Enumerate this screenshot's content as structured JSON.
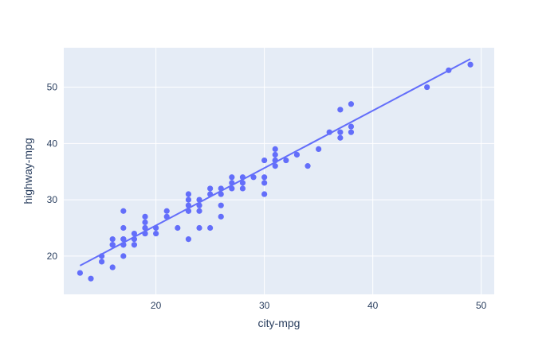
{
  "chart_data": {
    "type": "scatter",
    "title": "",
    "xlabel": "city-mpg",
    "ylabel": "highway-mpg",
    "xlim": [
      11.5,
      51.2
    ],
    "ylim": [
      13.2,
      57.0
    ],
    "xticks": [
      20,
      30,
      40,
      50
    ],
    "yticks": [
      20,
      30,
      40,
      50
    ],
    "xtick_labels": [
      "20",
      "30",
      "40",
      "50"
    ],
    "ytick_labels": [
      "20",
      "30",
      "40",
      "50"
    ],
    "grid": true,
    "legend": "none",
    "colors": {
      "plot_bg": "#e5ecf6",
      "grid": "#ffffff",
      "marker": "#636efa",
      "trendline": "#636efa",
      "text": "#2a3f5f"
    },
    "series": [
      {
        "kind": "points",
        "x": [
          13,
          14,
          15,
          15,
          16,
          16,
          16,
          16,
          17,
          17,
          17,
          17,
          17,
          17,
          17,
          18,
          18,
          18,
          19,
          19,
          19,
          19,
          19,
          19,
          20,
          20,
          21,
          21,
          22,
          23,
          23,
          23,
          23,
          23,
          23,
          24,
          24,
          24,
          24,
          25,
          25,
          25,
          26,
          26,
          26,
          26,
          27,
          27,
          27,
          28,
          28,
          28,
          29,
          30,
          30,
          30,
          30,
          31,
          31,
          31,
          31,
          31,
          32,
          33,
          34,
          35,
          36,
          37,
          37,
          37,
          38,
          38,
          38,
          45,
          47,
          49
        ],
        "y": [
          17,
          16,
          19,
          20,
          18,
          22,
          23,
          22,
          20,
          22,
          23,
          25,
          28,
          22,
          23,
          22,
          23,
          24,
          24,
          25,
          26,
          27,
          24,
          25,
          24,
          25,
          27,
          28,
          25,
          23,
          28,
          29,
          30,
          31,
          28,
          25,
          28,
          29,
          30,
          25,
          31,
          32,
          27,
          29,
          31,
          32,
          32,
          33,
          34,
          32,
          33,
          34,
          34,
          31,
          33,
          34,
          37,
          36,
          37,
          38,
          39,
          37,
          37,
          38,
          36,
          39,
          42,
          41,
          42,
          46,
          42,
          43,
          47,
          50,
          53,
          54
        ]
      },
      {
        "kind": "trendline",
        "x": [
          13,
          49
        ],
        "y": [
          18.3,
          55.0
        ]
      }
    ]
  }
}
